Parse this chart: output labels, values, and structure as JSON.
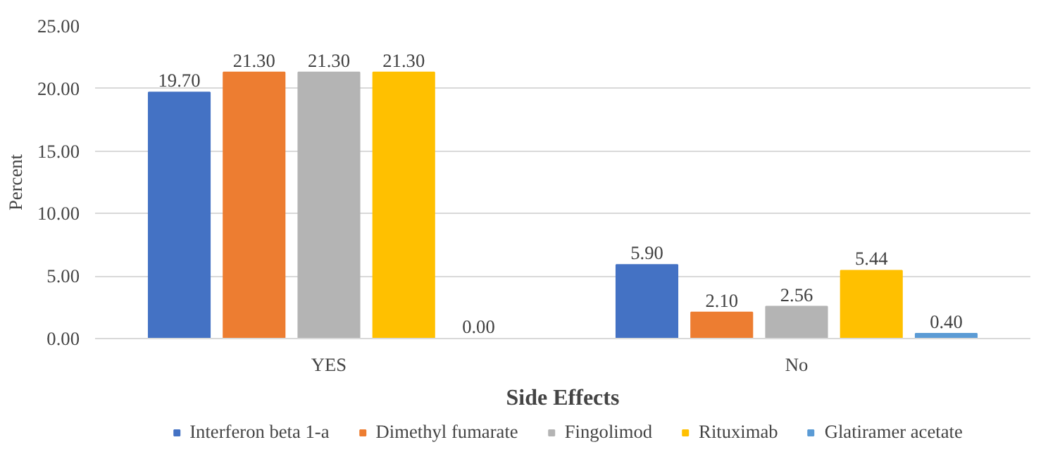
{
  "chart_data": {
    "type": "bar",
    "xlabel": "Side Effects",
    "ylabel": "Percent",
    "categories": [
      "YES",
      "No"
    ],
    "series": [
      {
        "name": "Interferon beta 1-a",
        "color": "#4472c4",
        "values": [
          19.7,
          5.9
        ],
        "value_labels": [
          "19.70",
          "5.90"
        ]
      },
      {
        "name": "Dimethyl fumarate",
        "color": "#ed7d31",
        "values": [
          21.3,
          2.1
        ],
        "value_labels": [
          "21.30",
          "2.10"
        ]
      },
      {
        "name": "Fingolimod",
        "color": "#b4b4b4",
        "values": [
          21.3,
          2.56
        ],
        "value_labels": [
          "21.30",
          "2.56"
        ]
      },
      {
        "name": "Rituximab",
        "color": "#ffc000",
        "values": [
          21.3,
          5.44
        ],
        "value_labels": [
          "21.30",
          "5.44"
        ]
      },
      {
        "name": "Glatiramer acetate",
        "color": "#5b9bd5",
        "values": [
          0.0,
          0.4
        ],
        "value_labels": [
          "0.00",
          "0.40"
        ]
      }
    ],
    "ylim": [
      0,
      25
    ],
    "yticks": [
      {
        "value": 0,
        "label": "0.00"
      },
      {
        "value": 5,
        "label": "5.00"
      },
      {
        "value": 10,
        "label": "10.00"
      },
      {
        "value": 15,
        "label": "15.00"
      },
      {
        "value": 20,
        "label": "20.00"
      },
      {
        "value": 25,
        "label": "25.00"
      }
    ],
    "grid": "y",
    "legend": "bottom"
  }
}
